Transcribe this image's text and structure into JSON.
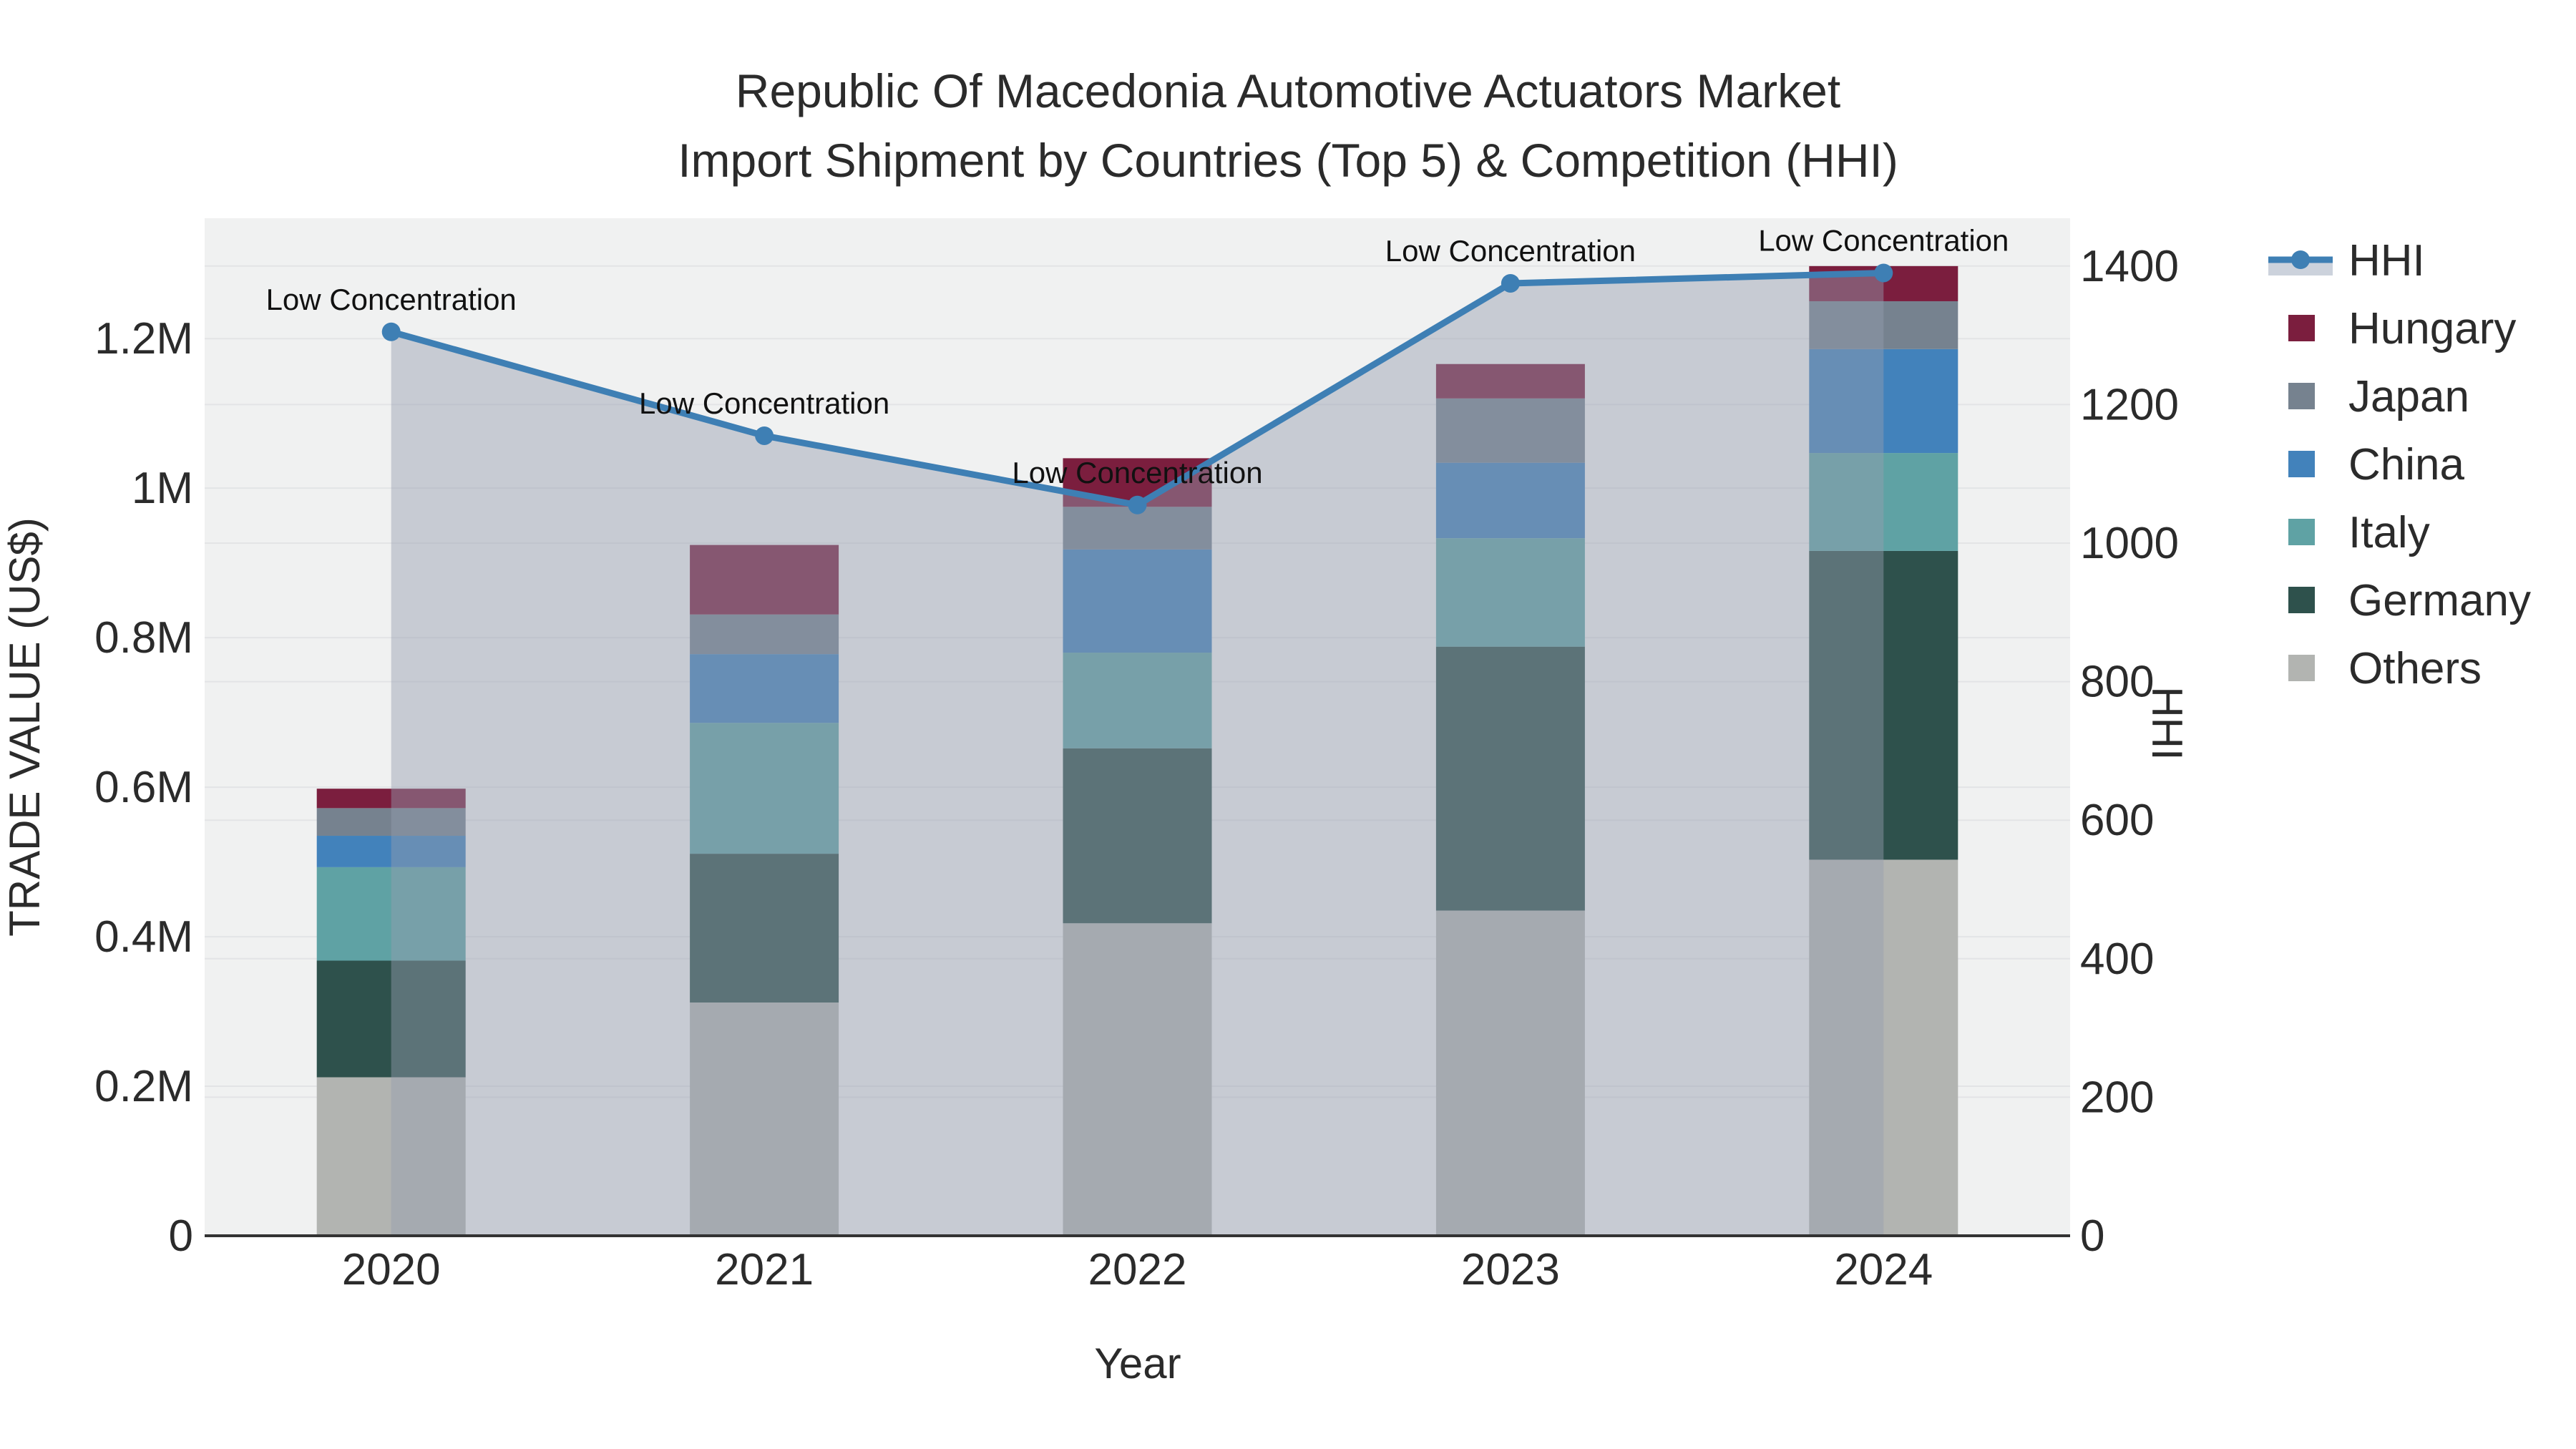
{
  "title": {
    "line1": "Republic Of Macedonia Automotive Actuators Market",
    "line2": "Import Shipment by Countries (Top 5) & Competition (HHI)"
  },
  "axes": {
    "x": {
      "title": "Year",
      "tick_labels": [
        "2020",
        "2021",
        "2022",
        "2023",
        "2024"
      ]
    },
    "y_left": {
      "title": "TRADE VALUE (US$)",
      "tick_labels": [
        "0",
        "0.2M",
        "0.4M",
        "0.6M",
        "0.8M",
        "1M",
        "1.2M"
      ],
      "tick_values": [
        0,
        200000,
        400000,
        600000,
        800000,
        1000000,
        1200000
      ],
      "range_max": 1361000
    },
    "y_right": {
      "title": "HHI",
      "tick_labels": [
        "0",
        "200",
        "400",
        "600",
        "800",
        "1000",
        "1200",
        "1400"
      ],
      "tick_values": [
        0,
        200,
        400,
        600,
        800,
        1000,
        1200,
        1400
      ],
      "range_max": 1469
    }
  },
  "chart_data": {
    "type": "bar+line",
    "categories": [
      "2020",
      "2021",
      "2022",
      "2023",
      "2024"
    ],
    "bar_stack_order_note": "bottom to top",
    "series": [
      {
        "name": "Others",
        "color": "#B2B4B1",
        "values": [
          212000,
          312000,
          418000,
          435000,
          503000
        ]
      },
      {
        "name": "Germany",
        "color": "#2E514C",
        "values": [
          156000,
          199000,
          234000,
          353000,
          413000
        ]
      },
      {
        "name": "Italy",
        "color": "#5FA2A4",
        "values": [
          125000,
          175000,
          128000,
          145000,
          131000
        ]
      },
      {
        "name": "China",
        "color": "#4282BB",
        "values": [
          42000,
          92000,
          138000,
          101000,
          139000
        ]
      },
      {
        "name": "Japan",
        "color": "#76828F",
        "values": [
          37000,
          53000,
          57000,
          86000,
          64000
        ]
      },
      {
        "name": "Hungary",
        "color": "#7B1E3E",
        "values": [
          26000,
          93000,
          65000,
          46000,
          47000
        ]
      }
    ],
    "line_series": {
      "name": "HHI",
      "axis": "right",
      "color": "#3E7FB4",
      "area_fill": "rgba(148,158,176,0.45)",
      "values": [
        1305,
        1155,
        1055,
        1375,
        1390
      ]
    },
    "annotations": [
      {
        "x": "2020",
        "text": "Low Concentration"
      },
      {
        "x": "2021",
        "text": "Low Concentration"
      },
      {
        "x": "2022",
        "text": "Low Concentration"
      },
      {
        "x": "2023",
        "text": "Low Concentration"
      },
      {
        "x": "2024",
        "text": "Low Concentration"
      }
    ],
    "grid": true,
    "legend_position": "right",
    "totals_trade_value": [
      598000,
      924000,
      1040000,
      1166000,
      1297000
    ]
  },
  "legend": {
    "items": [
      {
        "id": "hhi",
        "label": "HHI",
        "type": "line",
        "color": "#3E7FB4",
        "band_color": "#CCD2DC"
      },
      {
        "id": "hungary",
        "label": "Hungary",
        "type": "bar",
        "color": "#7B1E3E"
      },
      {
        "id": "japan",
        "label": "Japan",
        "type": "bar",
        "color": "#76828F"
      },
      {
        "id": "china",
        "label": "China",
        "type": "bar",
        "color": "#4282BB"
      },
      {
        "id": "italy",
        "label": "Italy",
        "type": "bar",
        "color": "#5FA2A4"
      },
      {
        "id": "germany",
        "label": "Germany",
        "type": "bar",
        "color": "#2E514C"
      },
      {
        "id": "others",
        "label": "Others",
        "type": "bar",
        "color": "#B2B4B1"
      }
    ]
  },
  "style": {
    "plot_bg": "#F0F1F1",
    "grid_color": "#E3E4E6",
    "axis_line_color": "#333333",
    "text_color": "#2B2B2B"
  }
}
